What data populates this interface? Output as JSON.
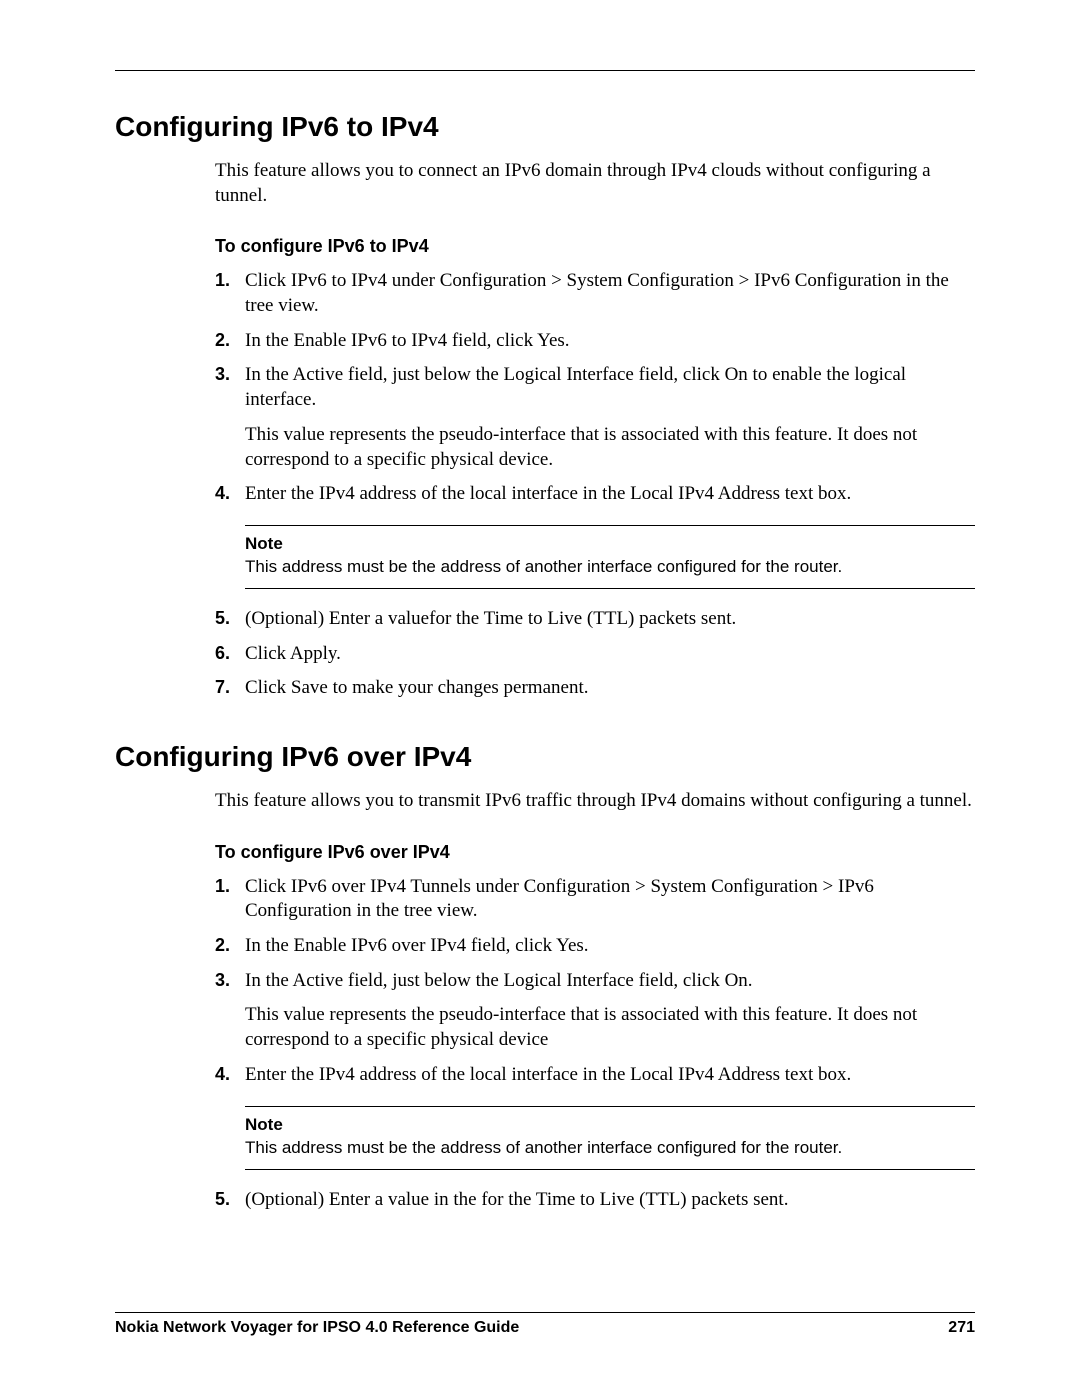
{
  "section1": {
    "heading": "Configuring IPv6 to IPv4",
    "intro": "This feature allows you to connect an IPv6 domain through IPv4 clouds without configuring a tunnel.",
    "subheading": "To configure IPv6 to IPv4",
    "steps": [
      {
        "text": "Click IPv6 to IPv4 under Configuration > System Configuration > IPv6 Configuration in the tree view."
      },
      {
        "text": "In the Enable IPv6 to IPv4 field, click Yes."
      },
      {
        "text": "In the Active field, just below the Logical Interface field, click On to enable the logical interface.",
        "extra": "This value represents the pseudo-interface that is associated with this feature. It does not correspond to a specific physical device."
      },
      {
        "text": "Enter the IPv4 address of the local interface in the Local IPv4 Address text box."
      },
      {
        "text": "(Optional) Enter a valuefor the Time to Live (TTL) packets sent."
      },
      {
        "text": "Click Apply."
      },
      {
        "text": "Click Save to make your changes permanent."
      }
    ],
    "note_after_step": 4,
    "note_label": "Note",
    "note_text": "This address must be the address of another interface configured for the router."
  },
  "section2": {
    "heading": "Configuring IPv6 over IPv4",
    "intro": "This feature allows you to transmit IPv6 traffic through IPv4 domains without configuring a tunnel.",
    "subheading": "To configure IPv6 over IPv4",
    "steps": [
      {
        "text": "Click IPv6 over IPv4 Tunnels under Configuration > System Configuration > IPv6 Configuration in the tree view."
      },
      {
        "text": "In the Enable IPv6 over IPv4 field, click Yes."
      },
      {
        "text": "In the Active field, just below the Logical Interface field, click On.",
        "extra": "This value represents the pseudo-interface that is associated with this feature. It does not correspond to a specific physical device"
      },
      {
        "text": "Enter the IPv4 address of the local interface in the Local IPv4 Address text box."
      },
      {
        "text": "(Optional) Enter a value in the for the Time to Live (TTL) packets sent."
      }
    ],
    "note_after_step": 4,
    "note_label": "Note",
    "note_text": "This address must be the address of another interface configured for the router."
  },
  "footer": {
    "title": "Nokia Network Voyager for IPSO 4.0 Reference Guide",
    "page": "271"
  }
}
